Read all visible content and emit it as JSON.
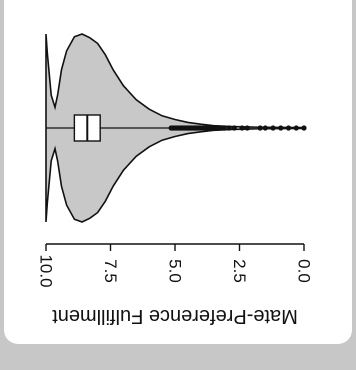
{
  "chart_data": {
    "type": "violin",
    "title": "",
    "ylabel": "Mate-Preference Fulfillment",
    "orientation": "horizontal, figure rotated 180°",
    "value_range": [
      0,
      10
    ],
    "ticks": [
      {
        "value": 0.0,
        "label": "0.0"
      },
      {
        "value": 2.5,
        "label": "2.5"
      },
      {
        "value": 5.0,
        "label": "5.0"
      },
      {
        "value": 7.5,
        "label": "7.5"
      },
      {
        "value": 10.0,
        "label": "10.0"
      }
    ],
    "box": {
      "q1": 7.9,
      "median": 8.4,
      "q3": 8.9,
      "whisker_low": 5.2,
      "whisker_high": 10.0
    },
    "density": [
      {
        "v": 0.0,
        "d": 0.004
      },
      {
        "v": 1.0,
        "d": 0.006
      },
      {
        "v": 2.0,
        "d": 0.01
      },
      {
        "v": 2.8,
        "d": 0.016
      },
      {
        "v": 3.5,
        "d": 0.025
      },
      {
        "v": 4.0,
        "d": 0.04
      },
      {
        "v": 4.5,
        "d": 0.06
      },
      {
        "v": 5.0,
        "d": 0.09
      },
      {
        "v": 5.5,
        "d": 0.13
      },
      {
        "v": 6.0,
        "d": 0.2
      },
      {
        "v": 6.5,
        "d": 0.3
      },
      {
        "v": 7.0,
        "d": 0.45
      },
      {
        "v": 7.4,
        "d": 0.62
      },
      {
        "v": 7.7,
        "d": 0.78
      },
      {
        "v": 8.0,
        "d": 0.9
      },
      {
        "v": 8.3,
        "d": 0.96
      },
      {
        "v": 8.6,
        "d": 1.0
      },
      {
        "v": 8.9,
        "d": 0.97
      },
      {
        "v": 9.2,
        "d": 0.82
      },
      {
        "v": 9.4,
        "d": 0.62
      },
      {
        "v": 9.55,
        "d": 0.35
      },
      {
        "v": 9.65,
        "d": 0.22
      },
      {
        "v": 9.8,
        "d": 0.35
      },
      {
        "v": 9.95,
        "d": 0.8
      },
      {
        "v": 10.0,
        "d": 1.0
      }
    ],
    "outliers": [
      0.0,
      0.3,
      0.6,
      0.9,
      1.2,
      1.5,
      1.7,
      2.2,
      2.4,
      2.7,
      2.9,
      3.1,
      3.2,
      3.35,
      3.5,
      3.6,
      3.7,
      3.8,
      3.9,
      4.0,
      4.05,
      4.1,
      4.15,
      4.2,
      4.25,
      4.3,
      4.35,
      4.4,
      4.45,
      4.5,
      4.55,
      4.6,
      4.65,
      4.7,
      4.75,
      4.8,
      4.85,
      4.9,
      4.95,
      5.0,
      5.05,
      5.1,
      5.15
    ],
    "colors": {
      "violin_fill": "#c8c8c8",
      "stroke": "#111111",
      "box_fill": "#ffffff",
      "background": "#ffffff",
      "frame": "#c7c7c7"
    }
  }
}
